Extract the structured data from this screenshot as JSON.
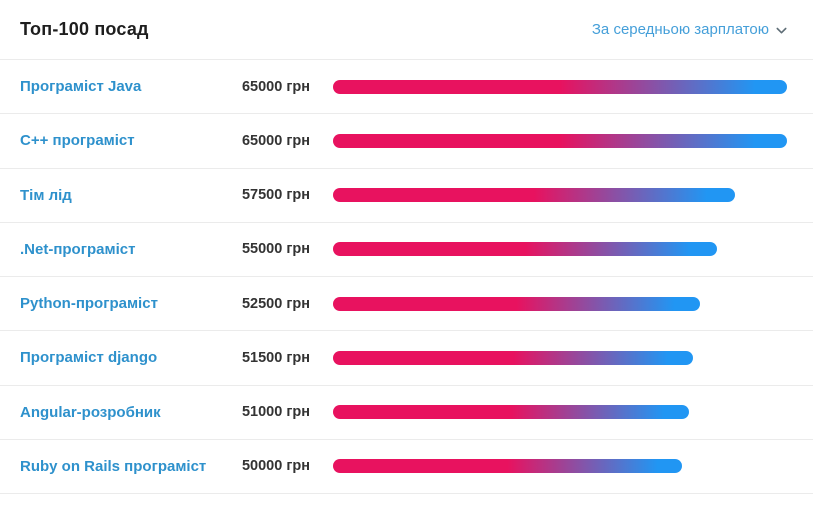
{
  "header": {
    "title": "Топ-100 посад",
    "sort_label": "За середньою зарплатою",
    "sort_icon": "chevron-down"
  },
  "colors": {
    "bar_gradient_start": "#e8125f",
    "bar_gradient_end": "#2196f3",
    "link": "#2e91cc",
    "sort_link": "#459fd9",
    "value_text": "#333333",
    "divider": "#ebebeb",
    "title_text": "#1e1e1e"
  },
  "rows": [
    {
      "label": "Програміст Java",
      "value": 65000,
      "value_label": "65000 грн"
    },
    {
      "label": "C++ програміст",
      "value": 65000,
      "value_label": "65000 грн"
    },
    {
      "label": "Тім лід",
      "value": 57500,
      "value_label": "57500 грн"
    },
    {
      "label": ".Net-програміст",
      "value": 55000,
      "value_label": "55000 грн"
    },
    {
      "label": "Python-програміст",
      "value": 52500,
      "value_label": "52500 грн"
    },
    {
      "label": "Програміст django",
      "value": 51500,
      "value_label": "51500 грн"
    },
    {
      "label": "Angular-розробник",
      "value": 51000,
      "value_label": "51000 грн"
    },
    {
      "label": "Ruby on Rails програміст",
      "value": 50000,
      "value_label": "50000 грн"
    }
  ],
  "chart_data": {
    "type": "bar",
    "orientation": "horizontal",
    "title": "Топ-100 посад",
    "sort_order": "За середньою зарплатою",
    "categories": [
      "Програміст Java",
      "C++ програміст",
      "Тім лід",
      ".Net-програміст",
      "Python-програміст",
      "Програміст django",
      "Angular-розробник",
      "Ruby on Rails програміст"
    ],
    "values": [
      65000,
      65000,
      57500,
      55000,
      52500,
      51500,
      51000,
      50000
    ],
    "value_unit": "грн",
    "xlabel": "",
    "ylabel": "",
    "xlim": [
      0,
      65000
    ],
    "grid": false,
    "legend": false,
    "bar_style": "gradient pink-to-blue, rounded caps, length proportional to value"
  }
}
